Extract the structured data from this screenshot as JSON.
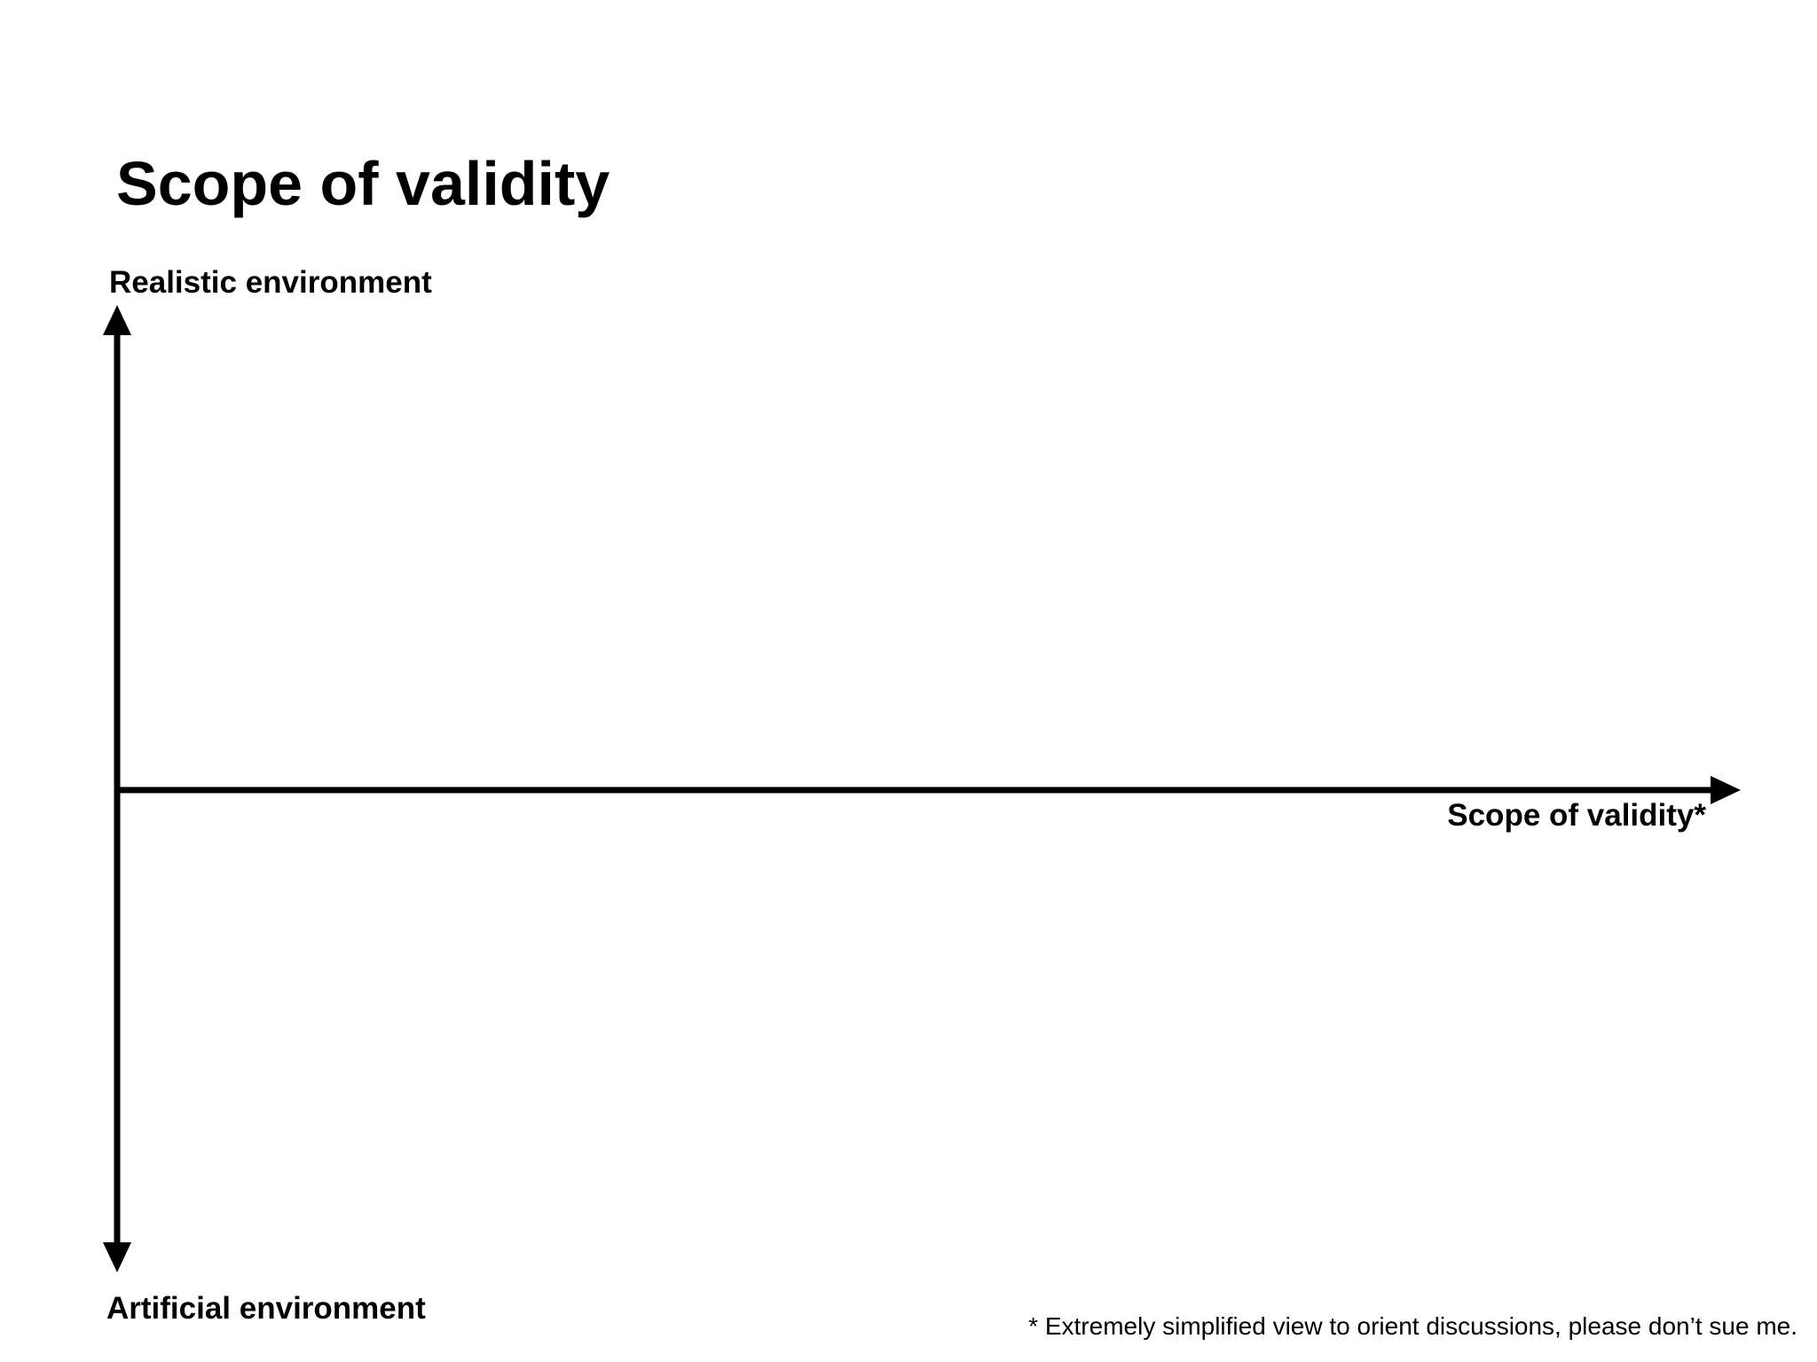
{
  "title": "Scope of validity",
  "axes": {
    "y_top_label": "Realistic environment",
    "y_bottom_label": "Artificial environment",
    "x_label": "Scope of validity*"
  },
  "footnote": "* Extremely simplified view to orient discussions, please don’t sue me.",
  "colors": {
    "background": "#ffffff",
    "ink": "#000000"
  }
}
